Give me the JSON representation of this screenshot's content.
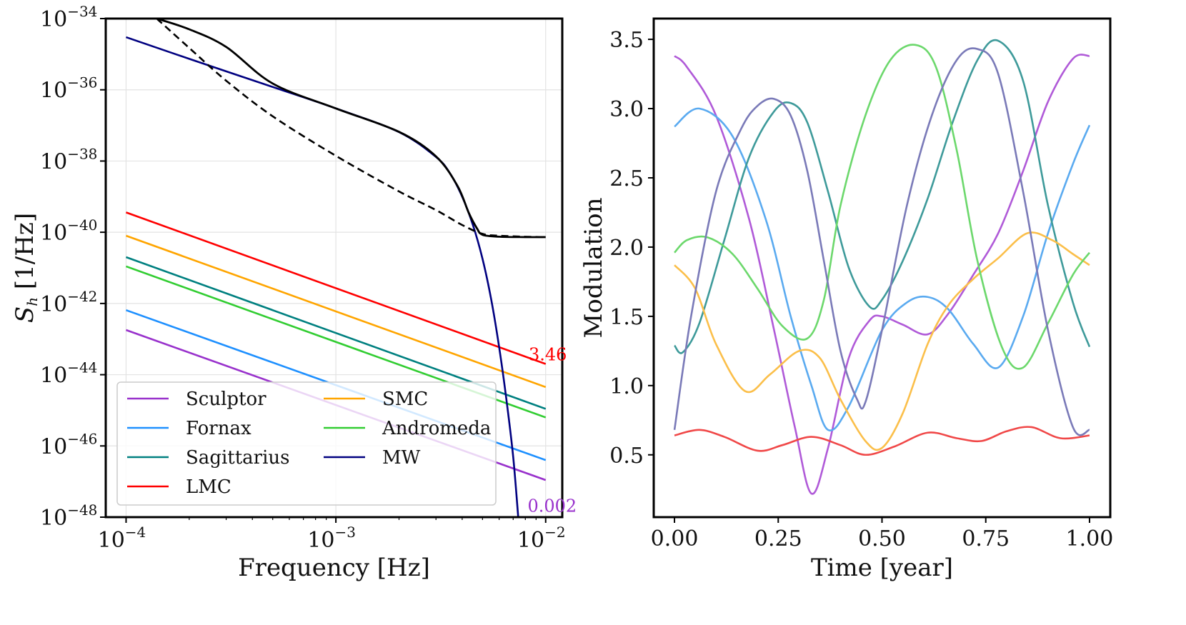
{
  "chart_data": [
    {
      "type": "line",
      "xscale": "log",
      "yscale": "log",
      "xlabel": "Frequency [Hz]",
      "ylabel": "S_h [1/Hz]",
      "ylabel_main": "S",
      "ylabel_sub": "h",
      "ylabel_unit": " [1/Hz]",
      "xlim": [
        8e-05,
        0.012
      ],
      "ylim": [
        1e-48,
        1e-34
      ],
      "grid": true,
      "xticks": [
        {
          "value": 0.0001,
          "base": "10",
          "exp": "−4"
        },
        {
          "value": 0.001,
          "base": "10",
          "exp": "−3"
        },
        {
          "value": 0.01,
          "base": "10",
          "exp": "−2"
        }
      ],
      "yticks": [
        {
          "value": 1e-34,
          "base": "10",
          "exp": "−34"
        },
        {
          "value": 1e-36,
          "base": "10",
          "exp": "−36"
        },
        {
          "value": 1e-38,
          "base": "10",
          "exp": "−38"
        },
        {
          "value": 1e-40,
          "base": "10",
          "exp": "−40"
        },
        {
          "value": 1e-42,
          "base": "10",
          "exp": "−42"
        },
        {
          "value": 1e-44,
          "base": "10",
          "exp": "−44"
        },
        {
          "value": 1e-46,
          "base": "10",
          "exp": "−46"
        },
        {
          "value": 1e-48,
          "base": "10",
          "exp": "−48"
        }
      ],
      "series": [
        {
          "name": "Sculptor",
          "color": "#9932cc",
          "x": [
            0.0001,
            0.01
          ],
          "y": [
            1.8e-43,
            1.1e-47
          ]
        },
        {
          "name": "Fornax",
          "color": "#1e90ff",
          "x": [
            0.0001,
            0.01
          ],
          "y": [
            6.5e-43,
            4e-47
          ]
        },
        {
          "name": "Sagittarius",
          "color": "#008080",
          "x": [
            0.0001,
            0.01
          ],
          "y": [
            2e-41,
            1.1e-45
          ]
        },
        {
          "name": "LMC",
          "color": "#ff0000",
          "x": [
            0.0001,
            0.01
          ],
          "y": [
            3.6e-40,
            2e-44
          ]
        },
        {
          "name": "SMC",
          "color": "#ffa500",
          "x": [
            0.0001,
            0.01
          ],
          "y": [
            8e-41,
            4.5e-45
          ]
        },
        {
          "name": "Andromeda",
          "color": "#32cd32",
          "x": [
            0.0001,
            0.01
          ],
          "y": [
            1.1e-41,
            6.3e-46
          ]
        },
        {
          "name": "MW",
          "color": "#000080",
          "x": [
            0.0001,
            0.0002,
            0.0005,
            0.001,
            0.002,
            0.003,
            0.0035,
            0.004,
            0.0045,
            0.005,
            0.0055,
            0.006,
            0.0065,
            0.007,
            0.0074
          ],
          "y": [
            3e-35,
            7.4e-36,
            1.2e-36,
            3e-37,
            6.5e-38,
            1.3e-38,
            4.5e-39,
            1e-39,
            1.6e-40,
            1.8e-41,
            1.3e-42,
            6e-44,
            2e-45,
            5e-47,
            1e-48
          ]
        }
      ],
      "total_curve": {
        "color": "#000000",
        "x": [
          0.00014,
          0.0002,
          0.0003,
          0.0005,
          0.001,
          0.002,
          0.003,
          0.0038,
          0.0043,
          0.0047,
          0.005,
          0.006,
          0.008,
          0.01
        ],
        "y": [
          1e-34,
          5e-35,
          1.6e-35,
          1.5e-36,
          3e-37,
          6.6e-38,
          1.35e-38,
          2e-39,
          3.5e-40,
          1.3e-40,
          8.5e-41,
          7.5e-41,
          7.3e-41,
          7.3e-41
        ]
      },
      "noise_curve": {
        "color": "#000000",
        "style": "dashed",
        "x": [
          0.00014,
          0.0002,
          0.0003,
          0.0005,
          0.001,
          0.002,
          0.003,
          0.004,
          0.005,
          0.006,
          0.008,
          0.01
        ],
        "y": [
          1e-34,
          1.5e-35,
          1.8e-36,
          1.8e-37,
          1.4e-38,
          1.4e-39,
          4.2e-40,
          1.6e-40,
          9e-41,
          8e-41,
          7.5e-41,
          7.3e-41
        ]
      },
      "annotations": [
        {
          "text": "3.46",
          "color": "#ff0000",
          "x": 0.0083,
          "y": 2.5e-44
        },
        {
          "text": "0.002",
          "color": "#9932cc",
          "x": 0.0082,
          "y": 1.4e-48
        }
      ],
      "legend": {
        "position": "lower-left",
        "columns": [
          [
            "Sculptor",
            "Fornax",
            "Sagittarius",
            "LMC"
          ],
          [
            "SMC",
            "Andromeda",
            "MW"
          ]
        ]
      }
    },
    {
      "type": "line",
      "xlabel": "Time [year]",
      "ylabel": "Modulation",
      "xlim": [
        -0.05,
        1.05
      ],
      "ylim": [
        0.05,
        3.65
      ],
      "grid": false,
      "xticks": [
        "0.00",
        "0.25",
        "0.50",
        "0.75",
        "1.00"
      ],
      "xtick_values": [
        0,
        0.25,
        0.5,
        0.75,
        1.0
      ],
      "yticks": [
        "0.5",
        "1.0",
        "1.5",
        "2.0",
        "2.5",
        "3.0",
        "3.5"
      ],
      "ytick_values": [
        0.5,
        1.0,
        1.5,
        2.0,
        2.5,
        3.0,
        3.5
      ],
      "series": [
        {
          "name": "Sculptor",
          "color": "#b05ad8",
          "x": [
            0,
            0.03,
            0.1,
            0.18,
            0.24,
            0.29,
            0.33,
            0.37,
            0.42,
            0.47,
            0.5,
            0.55,
            0.61,
            0.66,
            0.72,
            0.78,
            0.84,
            0.9,
            0.96,
            1.0
          ],
          "y": [
            3.38,
            3.3,
            2.95,
            2.2,
            1.4,
            0.7,
            0.22,
            0.55,
            1.2,
            1.47,
            1.5,
            1.44,
            1.37,
            1.52,
            1.8,
            2.1,
            2.55,
            3.05,
            3.36,
            3.38
          ]
        },
        {
          "name": "Fornax",
          "color": "#5aaaf0",
          "x": [
            0,
            0.06,
            0.14,
            0.22,
            0.28,
            0.33,
            0.37,
            0.42,
            0.5,
            0.56,
            0.61,
            0.66,
            0.72,
            0.78,
            0.84,
            0.9,
            0.96,
            1.0
          ],
          "y": [
            2.87,
            3.0,
            2.8,
            2.2,
            1.5,
            1.0,
            0.68,
            0.85,
            1.4,
            1.6,
            1.64,
            1.55,
            1.3,
            1.13,
            1.5,
            2.1,
            2.6,
            2.88
          ]
        },
        {
          "name": "Sagittarius",
          "color": "#3e9a9a",
          "x": [
            0,
            0.02,
            0.06,
            0.12,
            0.18,
            0.24,
            0.28,
            0.32,
            0.37,
            0.42,
            0.47,
            0.5,
            0.55,
            0.61,
            0.67,
            0.73,
            0.78,
            0.84,
            0.9,
            0.96,
            1.0
          ],
          "y": [
            1.29,
            1.24,
            1.45,
            2.05,
            2.65,
            2.98,
            3.04,
            2.9,
            2.4,
            1.85,
            1.57,
            1.62,
            1.9,
            2.35,
            2.9,
            3.35,
            3.49,
            3.2,
            2.3,
            1.6,
            1.28
          ]
        },
        {
          "name": "LMC",
          "color": "#f04848",
          "x": [
            0,
            0.06,
            0.12,
            0.2,
            0.26,
            0.33,
            0.4,
            0.46,
            0.53,
            0.61,
            0.68,
            0.74,
            0.8,
            0.86,
            0.93,
            1.0
          ],
          "y": [
            0.64,
            0.68,
            0.63,
            0.53,
            0.57,
            0.63,
            0.57,
            0.5,
            0.56,
            0.66,
            0.62,
            0.6,
            0.67,
            0.7,
            0.62,
            0.64
          ]
        },
        {
          "name": "SMC",
          "color": "#fbbf4a",
          "x": [
            0,
            0.05,
            0.1,
            0.17,
            0.23,
            0.3,
            0.35,
            0.4,
            0.46,
            0.5,
            0.55,
            0.61,
            0.66,
            0.72,
            0.78,
            0.85,
            0.91,
            0.96,
            1.0
          ],
          "y": [
            1.87,
            1.7,
            1.3,
            0.96,
            1.08,
            1.25,
            1.2,
            0.9,
            0.6,
            0.55,
            0.8,
            1.3,
            1.58,
            1.77,
            1.92,
            2.1,
            2.05,
            1.95,
            1.87
          ]
        },
        {
          "name": "Andromeda",
          "color": "#6cd86c",
          "x": [
            0,
            0.03,
            0.08,
            0.14,
            0.2,
            0.26,
            0.32,
            0.36,
            0.4,
            0.46,
            0.52,
            0.58,
            0.63,
            0.68,
            0.73,
            0.79,
            0.84,
            0.9,
            0.96,
            1.0
          ],
          "y": [
            1.96,
            2.05,
            2.07,
            1.95,
            1.7,
            1.43,
            1.34,
            1.62,
            2.3,
            2.95,
            3.35,
            3.46,
            3.3,
            2.7,
            1.9,
            1.27,
            1.13,
            1.45,
            1.8,
            1.96
          ]
        },
        {
          "name": "MW",
          "color": "#7a7ab8",
          "x": [
            0,
            0.04,
            0.1,
            0.16,
            0.2,
            0.24,
            0.28,
            0.32,
            0.36,
            0.4,
            0.44,
            0.46,
            0.5,
            0.56,
            0.62,
            0.68,
            0.73,
            0.78,
            0.84,
            0.9,
            0.96,
            1.0
          ],
          "y": [
            0.68,
            1.5,
            2.4,
            2.85,
            3.02,
            3.07,
            2.95,
            2.55,
            1.9,
            1.25,
            0.9,
            0.88,
            1.4,
            2.3,
            2.95,
            3.35,
            3.43,
            3.25,
            2.4,
            1.4,
            0.7,
            0.68
          ]
        }
      ]
    }
  ]
}
